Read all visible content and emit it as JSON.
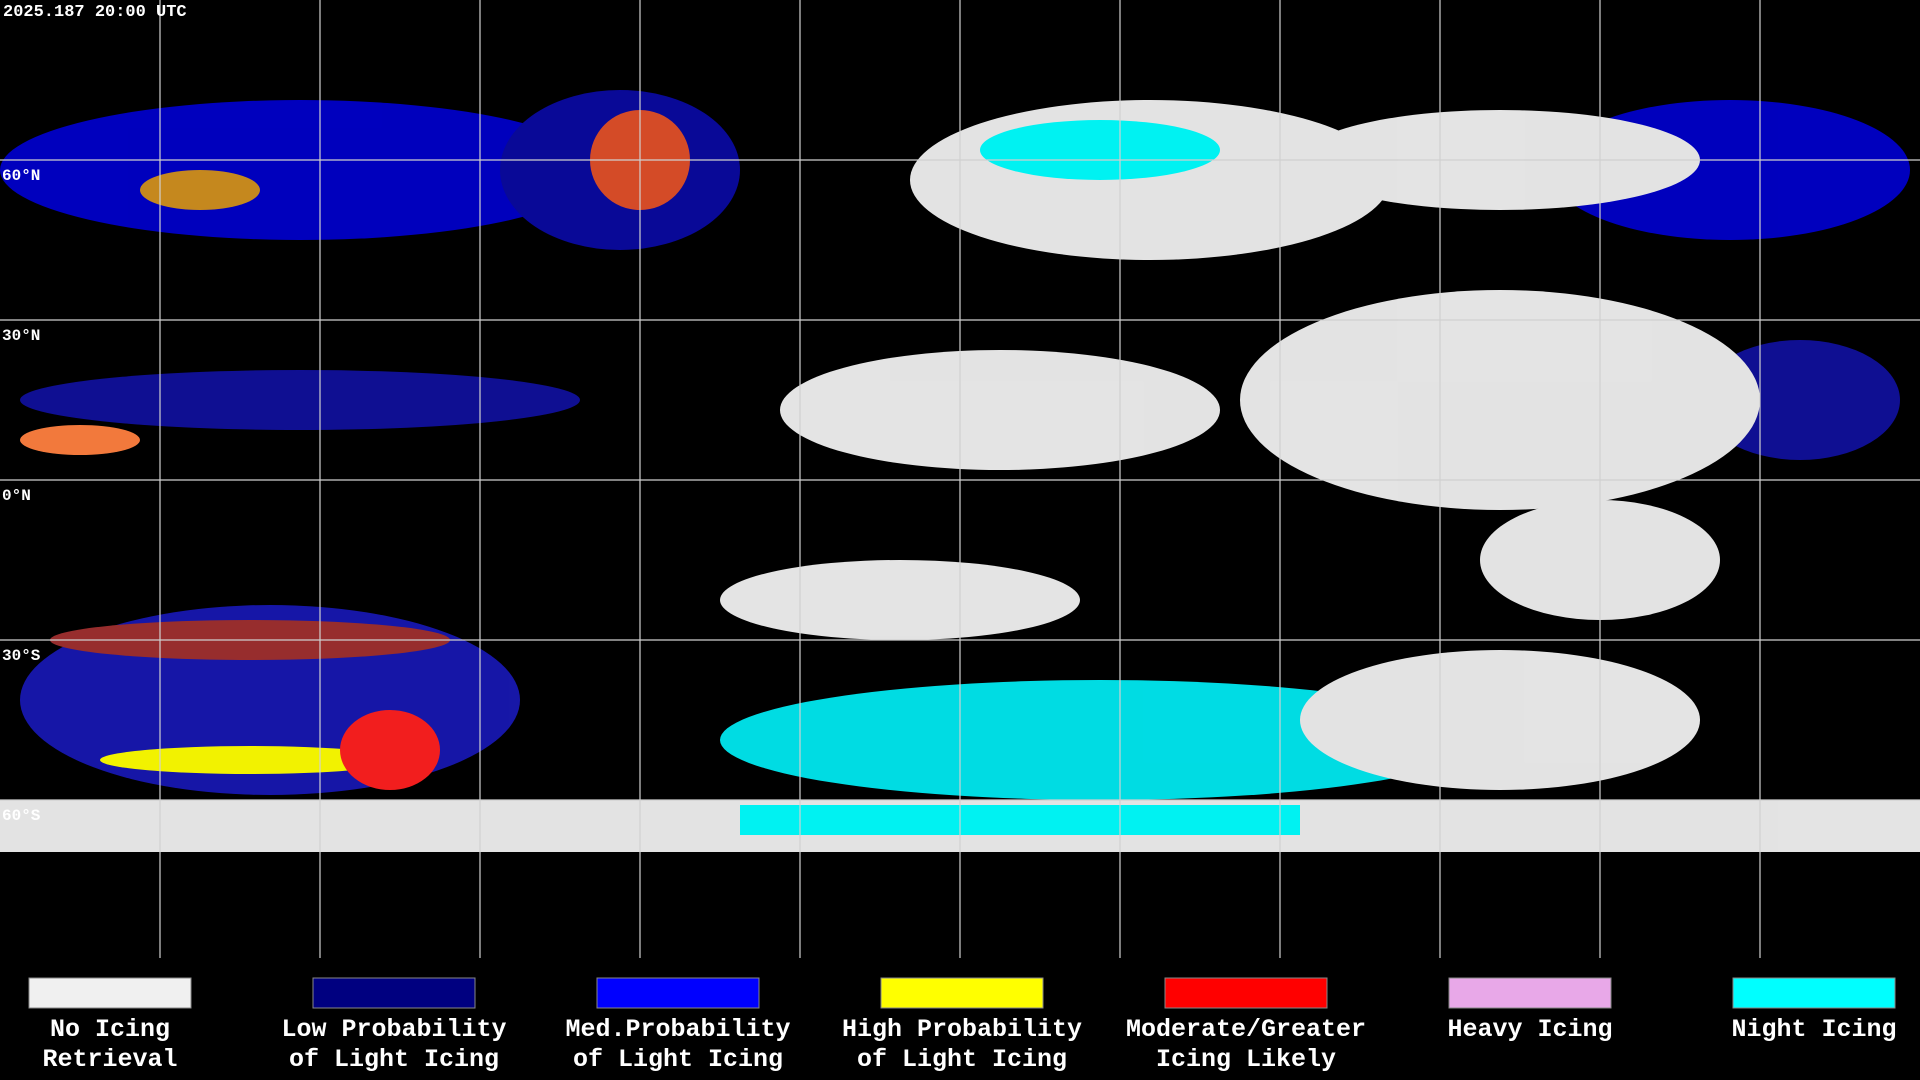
{
  "title": "2025.187 20:00 UTC",
  "latitude_labels": [
    "60°N",
    "30°N",
    "0°N",
    "30°S",
    "60°S"
  ],
  "legend": [
    {
      "lines": [
        "No Icing",
        "Retrieval"
      ],
      "color": "#f0f0f0"
    },
    {
      "lines": [
        "Low Probability",
        "of Light Icing"
      ],
      "color": "#000080"
    },
    {
      "lines": [
        "Med.Probability",
        "of Light Icing"
      ],
      "color": "#0000ff"
    },
    {
      "lines": [
        "High Probability",
        "of Light Icing"
      ],
      "color": "#ffff00"
    },
    {
      "lines": [
        "Moderate/Greater",
        "Icing Likely"
      ],
      "color": "#ff0000"
    },
    {
      "lines": [
        "Heavy Icing"
      ],
      "color": "#e8a8e8"
    },
    {
      "lines": [
        "Night Icing"
      ],
      "color": "#00ffff"
    }
  ]
}
